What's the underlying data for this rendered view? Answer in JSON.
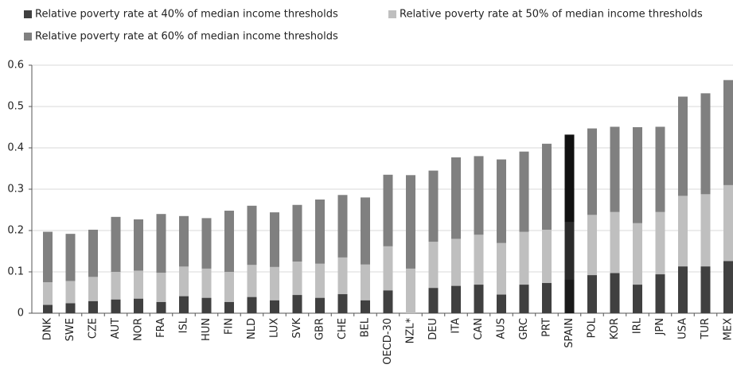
{
  "chart_data": {
    "type": "bar",
    "layout": "overlap",
    "categories": [
      "DNK",
      "SWE",
      "CZE",
      "AUT",
      "NOR",
      "FRA",
      "ISL",
      "HUN",
      "FIN",
      "NLD",
      "LUX",
      "SVK",
      "GBR",
      "CHE",
      "BEL",
      "OECD-30",
      "NZL*",
      "DEU",
      "ITA",
      "CAN",
      "AUS",
      "GRC",
      "PRT",
      "SPAIN",
      "POL",
      "KOR",
      "IRL",
      "JPN",
      "USA",
      "TUR",
      "MEX"
    ],
    "highlight": "SPAIN",
    "series": [
      {
        "name": "Relative poverty rate at 40% of median income thresholds",
        "color": "#404040",
        "highlight_color": "#1a1a1a",
        "values": [
          0.02,
          0.024,
          0.029,
          0.033,
          0.035,
          0.027,
          0.041,
          0.037,
          0.027,
          0.039,
          0.031,
          0.044,
          0.037,
          0.046,
          0.031,
          0.055,
          null,
          0.061,
          0.066,
          0.069,
          0.045,
          0.069,
          0.073,
          0.081,
          0.092,
          0.097,
          0.069,
          0.094,
          0.113,
          0.113,
          0.126
        ]
      },
      {
        "name": "Relative poverty rate at 50% of median income thresholds",
        "color": "#bfbfbf",
        "highlight_color": "#2b2b2b",
        "values": [
          0.075,
          0.078,
          0.088,
          0.1,
          0.103,
          0.098,
          0.113,
          0.108,
          0.1,
          0.117,
          0.112,
          0.125,
          0.12,
          0.135,
          0.118,
          0.162,
          0.108,
          0.173,
          0.18,
          0.19,
          0.17,
          0.197,
          0.202,
          0.221,
          0.238,
          0.245,
          0.218,
          0.245,
          0.284,
          0.288,
          0.31
        ]
      },
      {
        "name": "Relative poverty rate at 60% of median income thresholds",
        "color": "#808080",
        "highlight_color": "#111111",
        "values": [
          0.197,
          0.192,
          0.202,
          0.233,
          0.227,
          0.24,
          0.235,
          0.23,
          0.248,
          0.26,
          0.244,
          0.262,
          0.275,
          0.286,
          0.28,
          0.335,
          0.334,
          0.345,
          0.377,
          0.38,
          0.372,
          0.391,
          0.41,
          0.432,
          0.447,
          0.451,
          0.45,
          0.451,
          0.524,
          0.532,
          0.564
        ]
      }
    ],
    "ylim": [
      0,
      0.6
    ],
    "yticks": [
      0,
      0.1,
      0.2,
      0.3,
      0.4,
      0.5,
      0.6
    ],
    "grid": true
  }
}
